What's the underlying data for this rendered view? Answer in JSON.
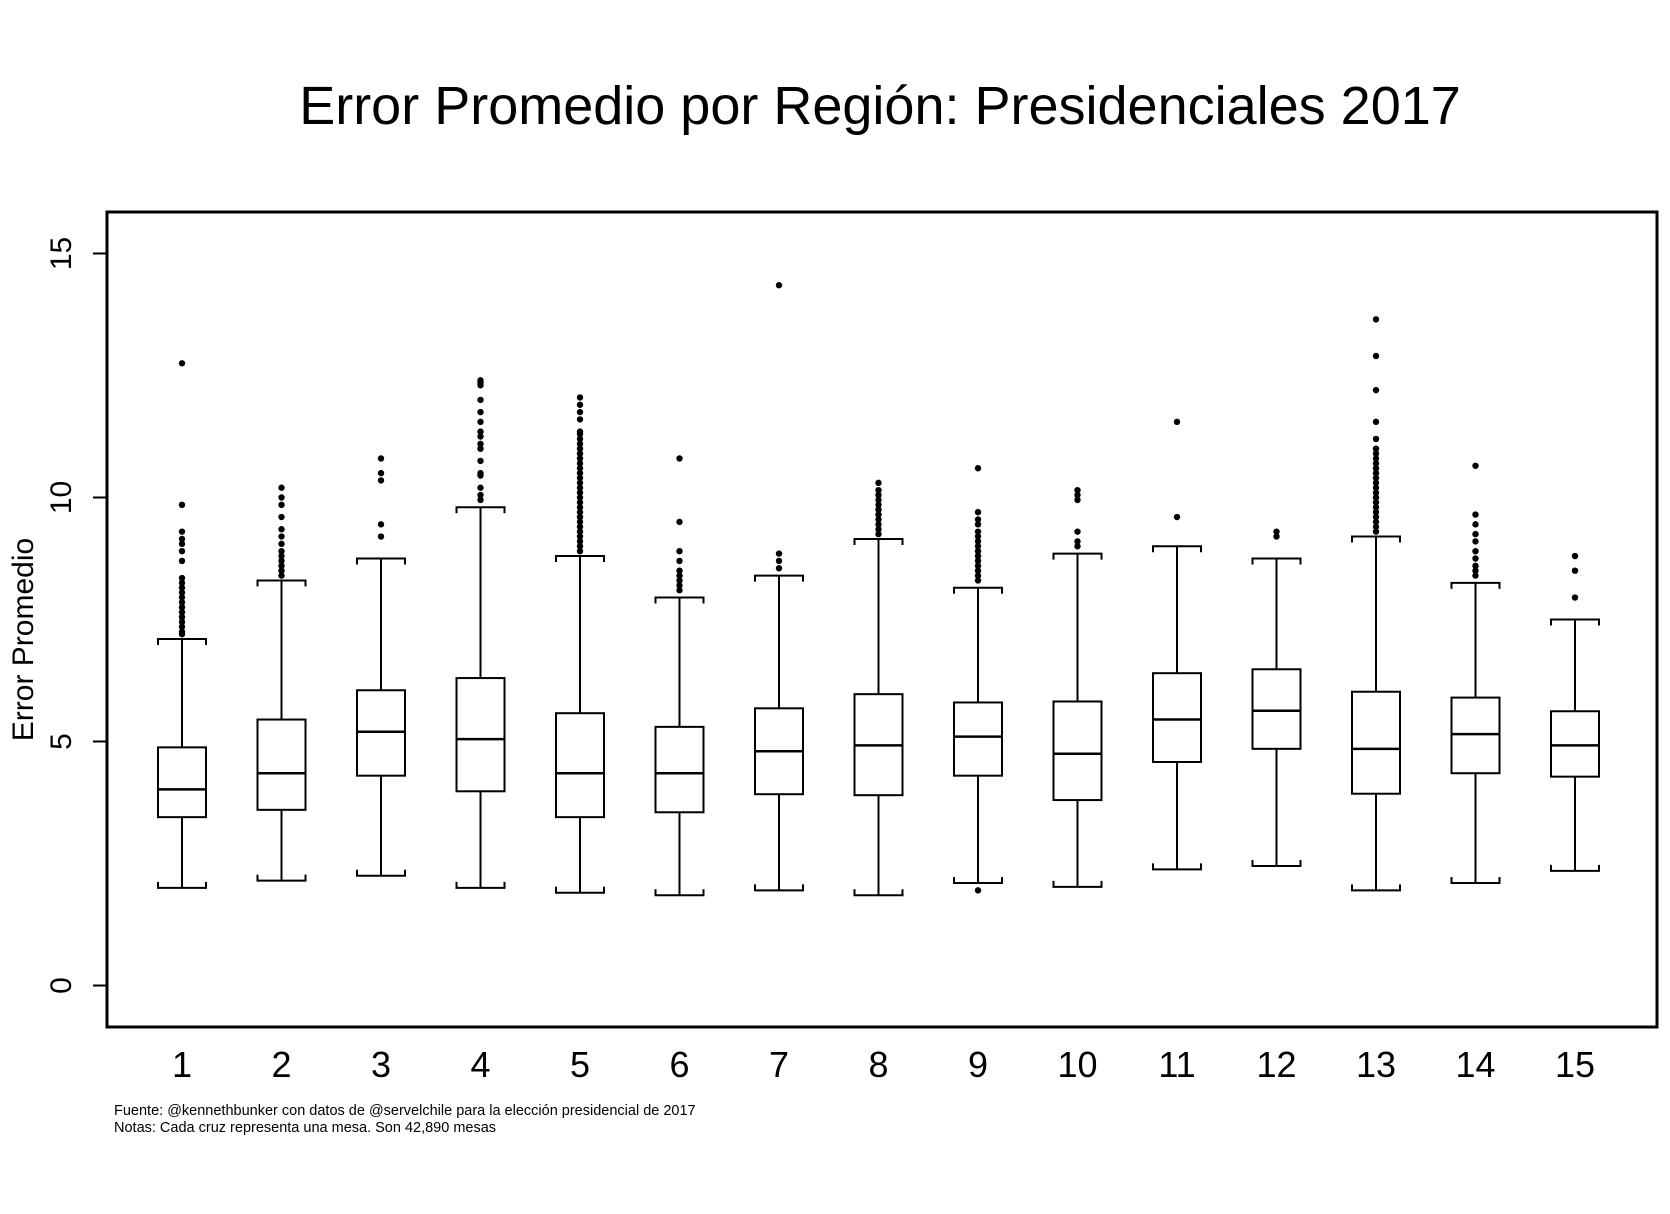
{
  "chart_data": {
    "type": "boxplot",
    "title": "Error Promedio por Región: Presidenciales 2017",
    "ylabel": "Error Promedio",
    "xlabel": "",
    "ylim": [
      -0.85,
      15.85
    ],
    "yticks": [
      0,
      5,
      10,
      15
    ],
    "grid": false,
    "categories": [
      "1",
      "2",
      "3",
      "4",
      "5",
      "6",
      "7",
      "8",
      "9",
      "10",
      "11",
      "12",
      "13",
      "14",
      "15"
    ],
    "boxes": [
      {
        "category": "1",
        "whisker_low": 2.0,
        "q1": 3.45,
        "median": 4.02,
        "q3": 4.88,
        "whisker_high": 7.1,
        "outliers": [
          7.2,
          7.25,
          7.35,
          7.45,
          7.55,
          7.65,
          7.75,
          7.85,
          7.95,
          8.05,
          8.15,
          8.25,
          8.35,
          8.7,
          8.9,
          9.05,
          9.15,
          9.3,
          9.85,
          12.75
        ]
      },
      {
        "category": "2",
        "whisker_low": 2.15,
        "q1": 3.6,
        "median": 4.35,
        "q3": 5.45,
        "whisker_high": 8.3,
        "outliers": [
          8.4,
          8.5,
          8.6,
          8.7,
          8.8,
          8.9,
          9.05,
          9.2,
          9.35,
          9.6,
          9.85,
          10.0,
          10.2
        ]
      },
      {
        "category": "3",
        "whisker_low": 2.25,
        "q1": 4.3,
        "median": 5.2,
        "q3": 6.05,
        "whisker_high": 8.75,
        "outliers": [
          9.2,
          9.45,
          10.35,
          10.5,
          10.8
        ]
      },
      {
        "category": "4",
        "whisker_low": 2.0,
        "q1": 3.98,
        "median": 5.05,
        "q3": 6.3,
        "whisker_high": 9.8,
        "outliers": [
          9.95,
          10.05,
          10.2,
          10.45,
          10.5,
          10.75,
          11.0,
          11.1,
          11.25,
          11.35,
          11.55,
          11.75,
          12.0,
          12.3,
          12.35,
          12.4
        ]
      },
      {
        "category": "5",
        "whisker_low": 1.9,
        "q1": 3.45,
        "median": 4.35,
        "q3": 5.58,
        "whisker_high": 8.8,
        "outliers": [
          8.9,
          9.0,
          9.1,
          9.2,
          9.3,
          9.4,
          9.5,
          9.6,
          9.7,
          9.8,
          9.9,
          10.0,
          10.1,
          10.2,
          10.3,
          10.4,
          10.5,
          10.6,
          10.7,
          10.8,
          10.9,
          11.0,
          11.1,
          11.2,
          11.3,
          11.35,
          11.6,
          11.75,
          11.9,
          12.05
        ]
      },
      {
        "category": "6",
        "whisker_low": 1.85,
        "q1": 3.55,
        "median": 4.35,
        "q3": 5.3,
        "whisker_high": 7.95,
        "outliers": [
          8.1,
          8.2,
          8.3,
          8.4,
          8.5,
          8.7,
          8.9,
          9.5,
          10.8
        ]
      },
      {
        "category": "7",
        "whisker_low": 1.95,
        "q1": 3.92,
        "median": 4.8,
        "q3": 5.68,
        "whisker_high": 8.4,
        "outliers": [
          8.55,
          8.7,
          8.85,
          14.35
        ]
      },
      {
        "category": "8",
        "whisker_low": 1.85,
        "q1": 3.9,
        "median": 4.92,
        "q3": 5.97,
        "whisker_high": 9.15,
        "outliers": [
          9.25,
          9.35,
          9.45,
          9.55,
          9.65,
          9.75,
          9.85,
          9.95,
          10.05,
          10.15,
          10.3
        ]
      },
      {
        "category": "9",
        "whisker_low": 2.1,
        "q1": 4.3,
        "median": 5.1,
        "q3": 5.8,
        "whisker_high": 8.15,
        "outliers": [
          1.95,
          8.3,
          8.4,
          8.5,
          8.6,
          8.7,
          8.8,
          8.9,
          9.0,
          9.1,
          9.2,
          9.3,
          9.45,
          9.55,
          9.7,
          10.6
        ]
      },
      {
        "category": "10",
        "whisker_low": 2.02,
        "q1": 3.8,
        "median": 4.75,
        "q3": 5.82,
        "whisker_high": 8.85,
        "outliers": [
          9.0,
          9.1,
          9.3,
          9.95,
          10.05,
          10.15
        ]
      },
      {
        "category": "11",
        "whisker_low": 2.38,
        "q1": 4.58,
        "median": 5.45,
        "q3": 6.4,
        "whisker_high": 9.0,
        "outliers": [
          9.6,
          11.55
        ]
      },
      {
        "category": "12",
        "whisker_low": 2.45,
        "q1": 4.85,
        "median": 5.63,
        "q3": 6.48,
        "whisker_high": 8.75,
        "outliers": [
          9.2,
          9.3
        ]
      },
      {
        "category": "13",
        "whisker_low": 1.95,
        "q1": 3.93,
        "median": 4.85,
        "q3": 6.02,
        "whisker_high": 9.2,
        "outliers": [
          9.3,
          9.4,
          9.5,
          9.6,
          9.7,
          9.8,
          9.9,
          10.0,
          10.1,
          10.2,
          10.3,
          10.4,
          10.5,
          10.6,
          10.7,
          10.8,
          10.9,
          11.0,
          11.2,
          11.55,
          12.2,
          12.9,
          13.65
        ]
      },
      {
        "category": "14",
        "whisker_low": 2.1,
        "q1": 4.35,
        "median": 5.15,
        "q3": 5.9,
        "whisker_high": 8.25,
        "outliers": [
          8.4,
          8.5,
          8.6,
          8.75,
          8.9,
          9.1,
          9.25,
          9.45,
          9.65,
          10.65
        ]
      },
      {
        "category": "15",
        "whisker_low": 2.35,
        "q1": 4.28,
        "median": 4.92,
        "q3": 5.62,
        "whisker_high": 7.5,
        "outliers": [
          7.95,
          8.5,
          8.8
        ]
      }
    ]
  },
  "notes": {
    "source": "Fuente: @kennethbunker con datos de @servelchile para la elección presidencial de 2017",
    "note": "Notas: Cada cruz representa una mesa. Son 42,890 mesas"
  }
}
